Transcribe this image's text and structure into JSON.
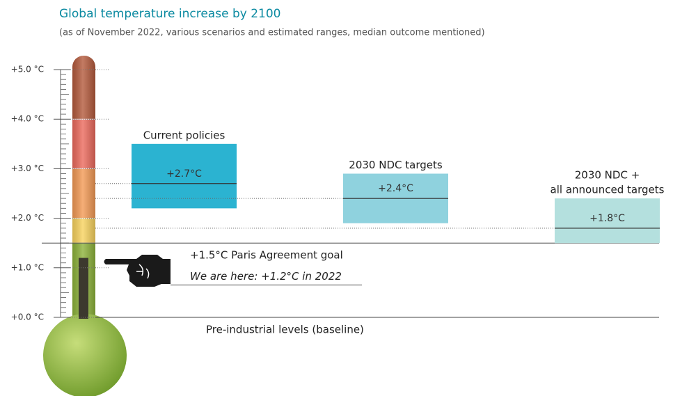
{
  "chart_data": {
    "type": "range",
    "title": "Global temperature increase by 2100",
    "subtitle": "(as of November 2022, various scenarios and estimated ranges, median outcome mentioned)",
    "ylim": [
      0,
      5
    ],
    "yticks": [
      {
        "value": 0,
        "label": "+0.0 °C"
      },
      {
        "value": 1,
        "label": "+1.0 °C"
      },
      {
        "value": 2,
        "label": "+2.0 °C"
      },
      {
        "value": 3,
        "label": "+3.0 °C"
      },
      {
        "value": 4,
        "label": "+4.0 °C"
      },
      {
        "value": 5,
        "label": "+5.0 °C"
      }
    ],
    "minor_ticks": 10,
    "thermometer_bands": [
      {
        "from": 0,
        "to": 1.5,
        "color": "#8db33a"
      },
      {
        "from": 1.5,
        "to": 2,
        "color": "#f8d35e"
      },
      {
        "from": 2,
        "to": 3,
        "color": "#f39a55"
      },
      {
        "from": 3,
        "to": 4,
        "color": "#ec6a5d"
      },
      {
        "from": 4,
        "to": 5,
        "color": "#b45a3c"
      }
    ],
    "series": [
      {
        "name": [
          "Current policies"
        ],
        "color": "#2bb3d1",
        "low": 2.2,
        "high": 3.5,
        "median": 2.7,
        "median_label": "+2.7°C"
      },
      {
        "name": [
          "2030 NDC targets"
        ],
        "color": "#8fd2de",
        "low": 1.9,
        "high": 2.9,
        "median": 2.4,
        "median_label": "+2.4°C"
      },
      {
        "name": [
          "2030 NDC +",
          "all announced targets"
        ],
        "color": "#b4e0de",
        "low": 1.5,
        "high": 2.4,
        "median": 1.8,
        "median_label": "+1.8°C"
      }
    ],
    "goal": {
      "value": 1.5,
      "label": "+1.5°C Paris Agreement goal"
    },
    "current": {
      "value": 1.2,
      "label": "We are here: +1.2°C in 2022"
    },
    "baseline": {
      "value": 0,
      "label": "Pre-industrial levels (baseline)"
    }
  }
}
